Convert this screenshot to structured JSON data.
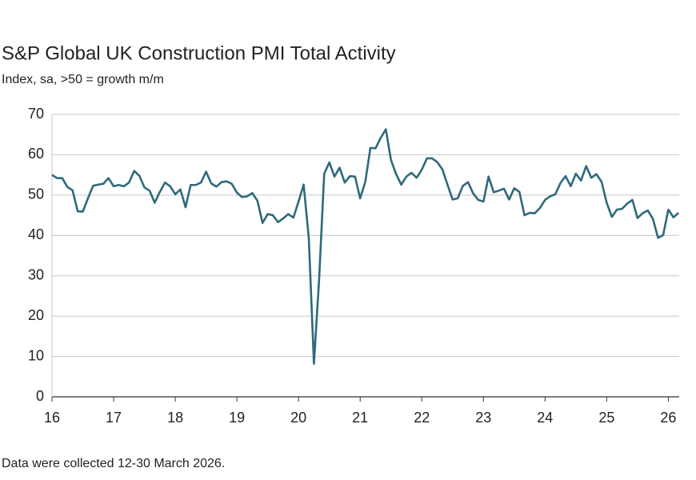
{
  "chart_data": {
    "type": "line",
    "title": "S&P Global UK Construction PMI Total Activity",
    "subtitle": "Index, sa, >50 = growth m/m",
    "note": "Data were collected 12-30 March 2026.",
    "categories": [
      "16",
      null,
      null,
      null,
      null,
      null,
      null,
      null,
      null,
      null,
      null,
      null,
      "17",
      null,
      null,
      null,
      null,
      null,
      null,
      null,
      null,
      null,
      null,
      null,
      "18",
      null,
      null,
      null,
      null,
      null,
      null,
      null,
      null,
      null,
      null,
      null,
      "19",
      null,
      null,
      null,
      null,
      null,
      null,
      null,
      null,
      null,
      null,
      null,
      "20",
      null,
      null,
      null,
      null,
      null,
      null,
      null,
      null,
      null,
      null,
      null,
      "21",
      null,
      null,
      null,
      null,
      null,
      null,
      null,
      null,
      null,
      null,
      null,
      "22",
      null,
      null,
      null,
      null,
      null,
      null,
      null,
      null,
      null,
      null,
      null,
      "23",
      null,
      null,
      null,
      null,
      null,
      null,
      null,
      null,
      null,
      null,
      null,
      "24",
      null,
      null,
      null,
      null,
      null,
      null,
      null,
      null,
      null,
      null,
      null,
      "25",
      null,
      null,
      null,
      null,
      null,
      null,
      null,
      null,
      null,
      null,
      null,
      "26",
      null,
      null
    ],
    "series": [
      {
        "name": "Total Activity",
        "color": "#2f6a7c",
        "values": [
          55.0,
          54.2,
          54.2,
          52.0,
          51.2,
          46.0,
          45.9,
          49.2,
          52.3,
          52.6,
          52.8,
          54.2,
          52.2,
          52.5,
          52.2,
          53.1,
          56.0,
          54.8,
          51.9,
          51.1,
          48.1,
          50.8,
          53.1,
          52.2,
          50.2,
          51.4,
          47.0,
          52.5,
          52.5,
          53.1,
          55.8,
          52.9,
          52.1,
          53.2,
          53.4,
          52.8,
          50.6,
          49.5,
          49.7,
          50.5,
          48.6,
          43.1,
          45.3,
          45.0,
          43.3,
          44.2,
          45.3,
          44.4,
          48.4,
          52.6,
          39.3,
          8.2,
          28.9,
          55.3,
          58.1,
          54.6,
          56.8,
          53.1,
          54.7,
          54.6,
          49.2,
          53.3,
          61.7,
          61.6,
          64.2,
          66.3,
          58.7,
          55.2,
          52.6,
          54.6,
          55.5,
          54.3,
          56.3,
          59.1,
          59.1,
          58.2,
          56.4,
          52.6,
          48.9,
          49.2,
          52.3,
          53.2,
          50.4,
          48.8,
          48.4,
          54.6,
          50.7,
          51.1,
          51.6,
          48.9,
          51.7,
          50.8,
          45.0,
          45.6,
          45.5,
          46.8,
          48.8,
          49.7,
          50.2,
          53.0,
          54.7,
          52.2,
          55.3,
          53.6,
          57.2,
          54.3,
          55.2,
          53.3,
          48.1,
          44.6,
          46.4,
          46.6,
          47.9,
          48.8,
          44.3,
          45.5,
          46.2,
          44.1,
          39.4,
          40.1,
          46.4,
          44.5,
          45.6
        ]
      }
    ],
    "ylim": [
      0,
      70
    ],
    "yticks": [
      0,
      10,
      20,
      30,
      40,
      50,
      60,
      70
    ],
    "grid": true
  }
}
